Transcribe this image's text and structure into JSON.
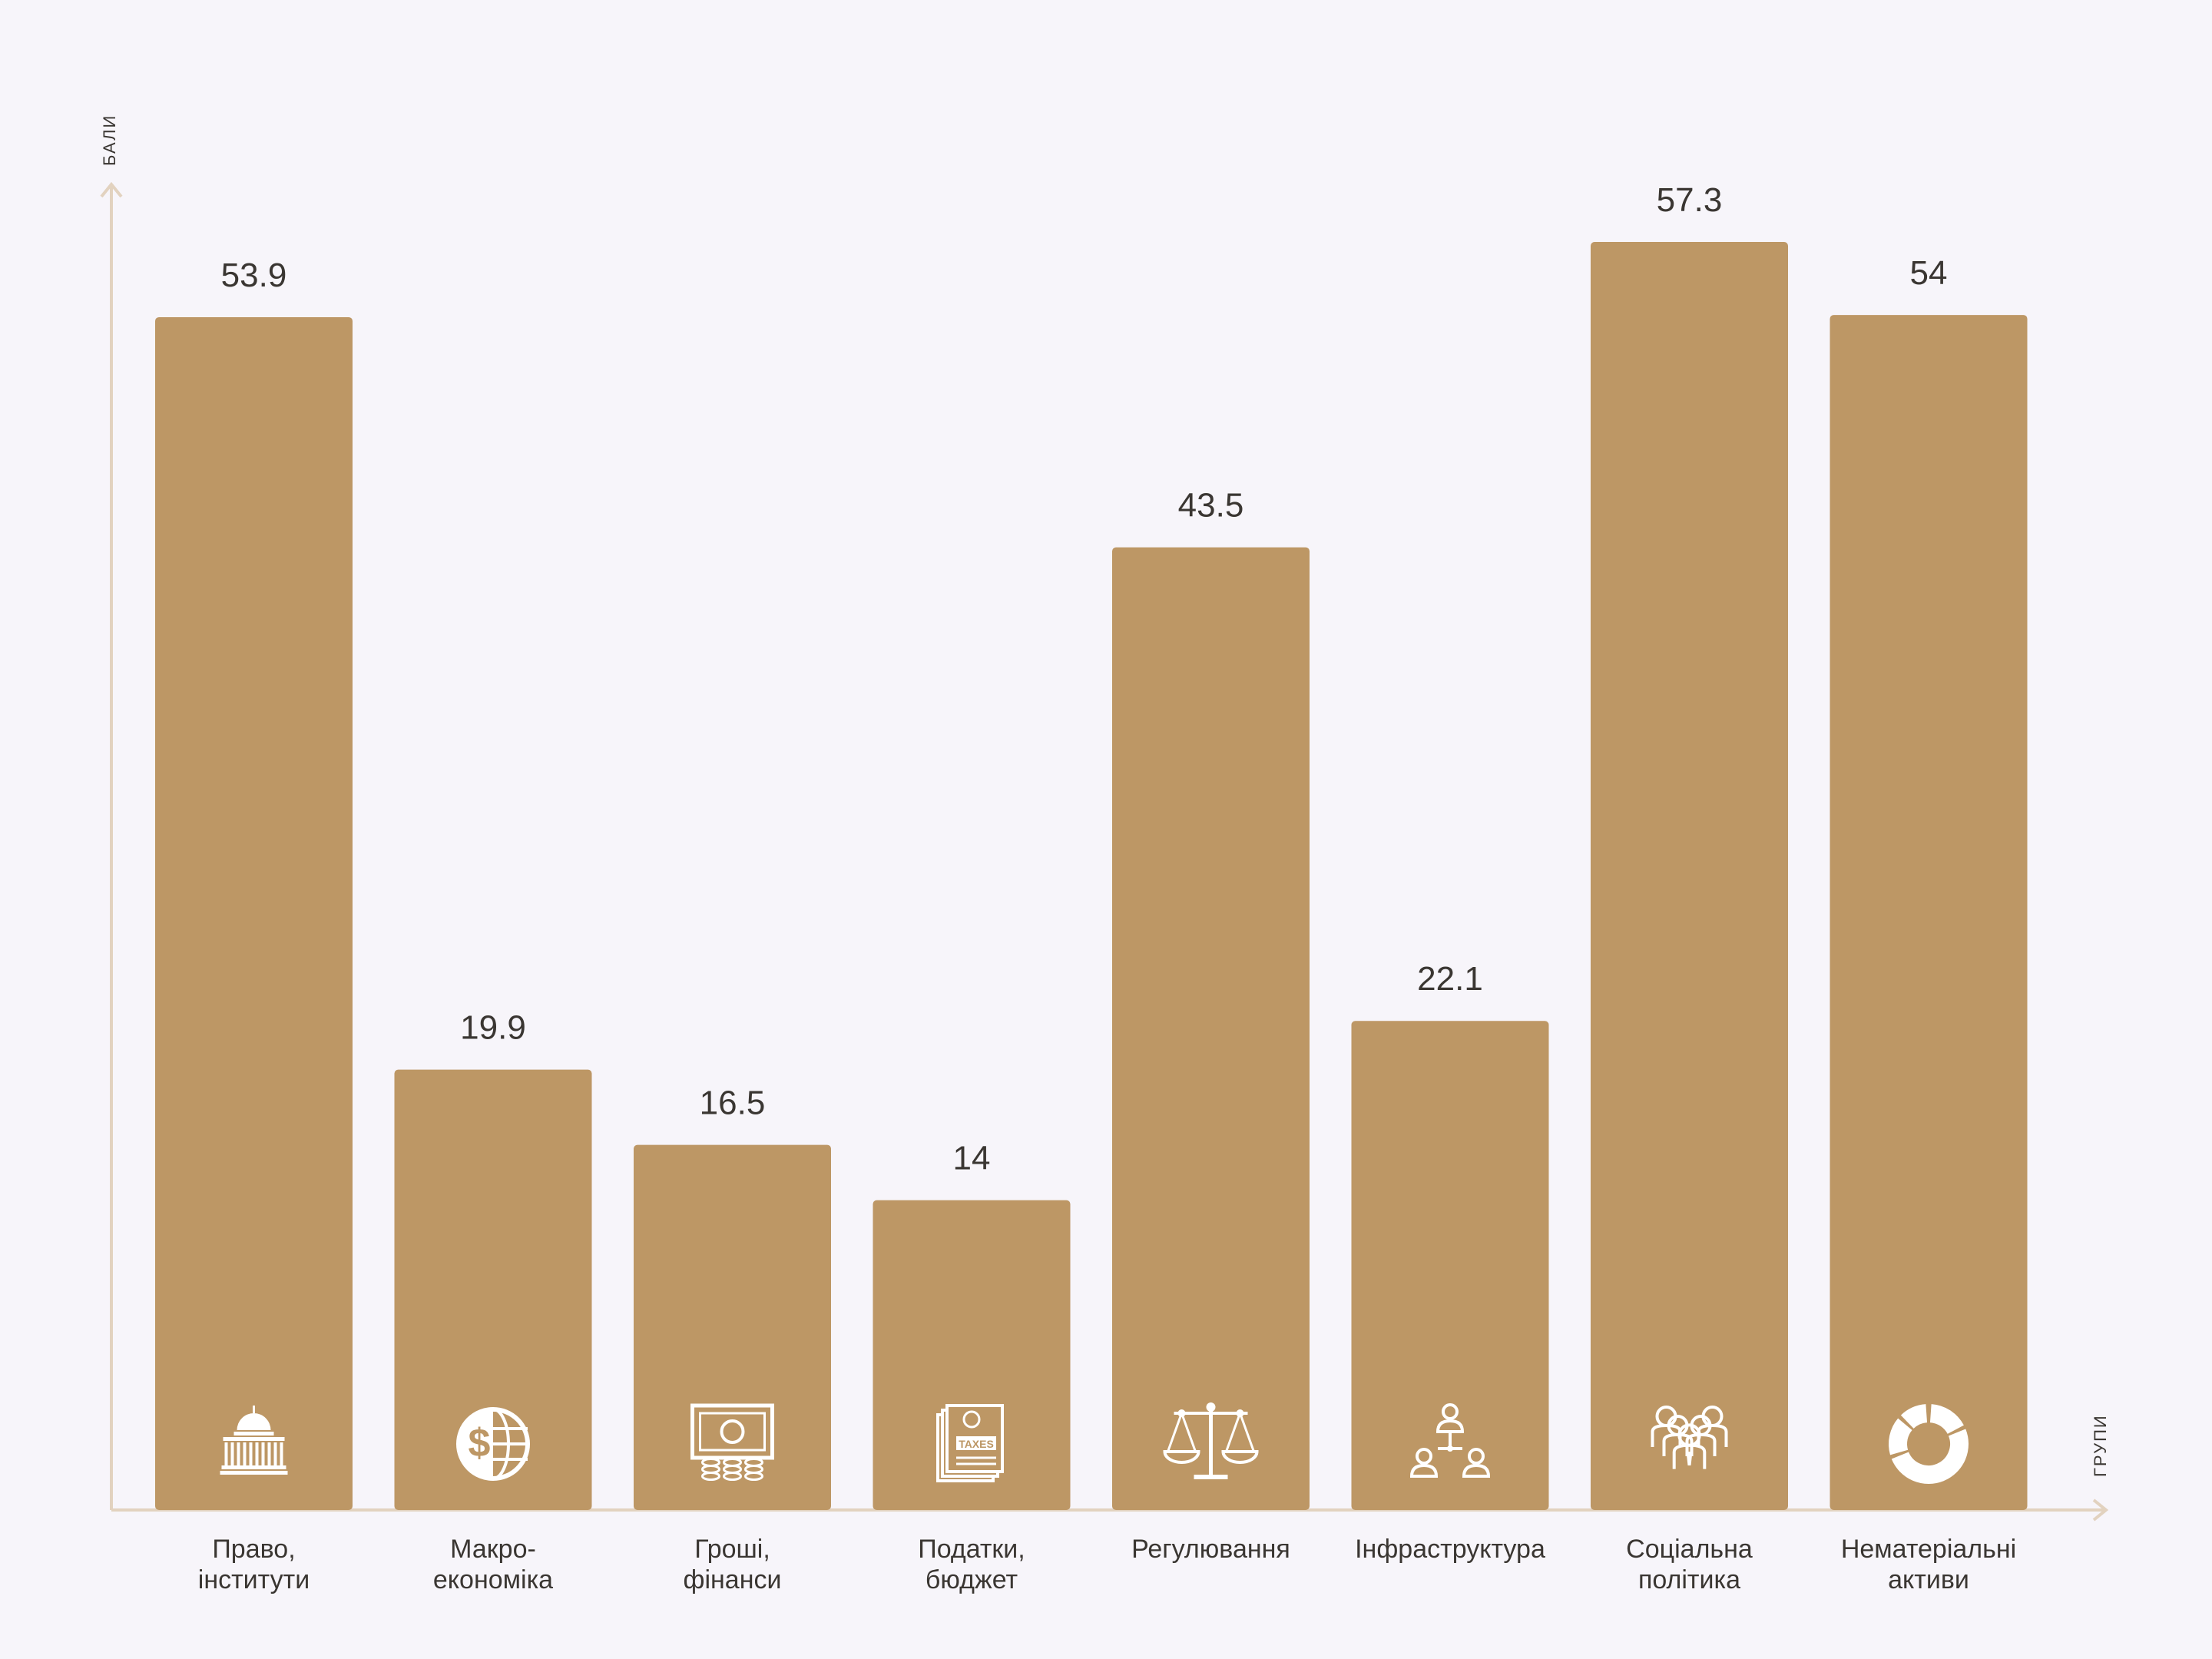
{
  "chart_data": {
    "type": "bar",
    "ylabel": "БАЛИ",
    "xlabel": "ГРУПИ",
    "ylim": [
      0,
      60
    ],
    "grid": false,
    "categories": [
      {
        "lines": [
          "Право,",
          "інститути"
        ],
        "icon": "capitol-icon"
      },
      {
        "lines": [
          "Макро-",
          "економіка"
        ],
        "icon": "dollar-globe-icon"
      },
      {
        "lines": [
          "Гроші,",
          "фінанси"
        ],
        "icon": "banknote-coins-icon"
      },
      {
        "lines": [
          "Податки,",
          "бюджет"
        ],
        "icon": "taxes-documents-icon"
      },
      {
        "lines": [
          "Регулювання"
        ],
        "icon": "scales-icon"
      },
      {
        "lines": [
          "Інфраструктура"
        ],
        "icon": "network-people-icon"
      },
      {
        "lines": [
          "Соціальна",
          "політика"
        ],
        "icon": "people-group-icon"
      },
      {
        "lines": [
          "Нематеріальні",
          "активи"
        ],
        "icon": "donut-chart-icon"
      }
    ],
    "values": [
      53.9,
      19.9,
      16.5,
      14,
      43.5,
      22.1,
      57.3,
      54
    ],
    "value_labels": [
      "53.9",
      "19.9",
      "16.5",
      "14",
      "43.5",
      "22.1",
      "57.3",
      "54"
    ]
  },
  "colors": {
    "bar": "#bd9765",
    "axis": "#e2d2bf",
    "text": "#3a3632",
    "icon": "#ffffff",
    "background": "#f7f5fa"
  }
}
